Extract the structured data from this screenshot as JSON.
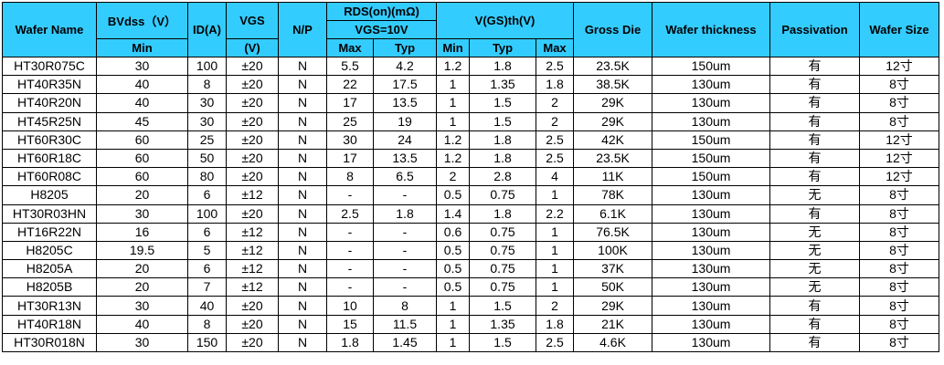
{
  "table": {
    "header": {
      "wafer_name": "Wafer Name",
      "bvdss": "BVdss（V）",
      "bvdss_min": "Min",
      "id": "ID(A)",
      "vgs": "VGS",
      "vgs_unit": "(V)",
      "np": "N/P",
      "rds": "RDS(on)(mΩ)",
      "rds_cond": "VGS=10V",
      "rds_max": "Max",
      "rds_typ": "Typ",
      "vth": "V(GS)th(V)",
      "vth_min": "Min",
      "vth_typ": "Typ",
      "vth_max": "Max",
      "gross_die": "Gross Die",
      "thickness": "Wafer thickness",
      "passivation": "Passivation",
      "size": "Wafer Size"
    },
    "rows": [
      [
        "HT30R075C",
        "30",
        "100",
        "±20",
        "N",
        "5.5",
        "4.2",
        "1.2",
        "1.8",
        "2.5",
        "23.5K",
        "150um",
        "有",
        "12寸"
      ],
      [
        "HT40R35N",
        "40",
        "8",
        "±20",
        "N",
        "22",
        "17.5",
        "1",
        "1.35",
        "1.8",
        "38.5K",
        "130um",
        "有",
        "8寸"
      ],
      [
        "HT40R20N",
        "40",
        "30",
        "±20",
        "N",
        "17",
        "13.5",
        "1",
        "1.5",
        "2",
        "29K",
        "130um",
        "有",
        "8寸"
      ],
      [
        "HT45R25N",
        "45",
        "30",
        "±20",
        "N",
        "25",
        "19",
        "1",
        "1.5",
        "2",
        "29K",
        "130um",
        "有",
        "8寸"
      ],
      [
        "HT60R30C",
        "60",
        "25",
        "±20",
        "N",
        "30",
        "24",
        "1.2",
        "1.8",
        "2.5",
        "42K",
        "150um",
        "有",
        "12寸"
      ],
      [
        "HT60R18C",
        "60",
        "50",
        "±20",
        "N",
        "17",
        "13.5",
        "1.2",
        "1.8",
        "2.5",
        "23.5K",
        "150um",
        "有",
        "12寸"
      ],
      [
        "HT60R08C",
        "60",
        "80",
        "±20",
        "N",
        "8",
        "6.5",
        "2",
        "2.8",
        "4",
        "11K",
        "150um",
        "有",
        "12寸"
      ],
      [
        "H8205",
        "20",
        "6",
        "±12",
        "N",
        "-",
        "-",
        "0.5",
        "0.75",
        "1",
        "78K",
        "130um",
        "无",
        "8寸"
      ],
      [
        "HT30R03HN",
        "30",
        "100",
        "±20",
        "N",
        "2.5",
        "1.8",
        "1.4",
        "1.8",
        "2.2",
        "6.1K",
        "130um",
        "有",
        "8寸"
      ],
      [
        "HT16R22N",
        "16",
        "6",
        "±12",
        "N",
        "-",
        "-",
        "0.6",
        "0.75",
        "1",
        "76.5K",
        "130um",
        "无",
        "8寸"
      ],
      [
        "H8205C",
        "19.5",
        "5",
        "±12",
        "N",
        "-",
        "-",
        "0.5",
        "0.75",
        "1",
        "100K",
        "130um",
        "无",
        "8寸"
      ],
      [
        "H8205A",
        "20",
        "6",
        "±12",
        "N",
        "-",
        "-",
        "0.5",
        "0.75",
        "1",
        "37K",
        "130um",
        "无",
        "8寸"
      ],
      [
        "H8205B",
        "20",
        "7",
        "±12",
        "N",
        "-",
        "-",
        "0.5",
        "0.75",
        "1",
        "50K",
        "130um",
        "无",
        "8寸"
      ],
      [
        "HT30R13N",
        "30",
        "40",
        "±20",
        "N",
        "10",
        "8",
        "1",
        "1.5",
        "2",
        "29K",
        "130um",
        "有",
        "8寸"
      ],
      [
        "HT40R18N",
        "40",
        "8",
        "±20",
        "N",
        "15",
        "11.5",
        "1",
        "1.35",
        "1.8",
        "21K",
        "130um",
        "有",
        "8寸"
      ],
      [
        "HT30R018N",
        "30",
        "150",
        "±20",
        "N",
        "1.8",
        "1.45",
        "1",
        "1.5",
        "2.5",
        "4.6K",
        "130um",
        "有",
        "8寸"
      ]
    ]
  }
}
